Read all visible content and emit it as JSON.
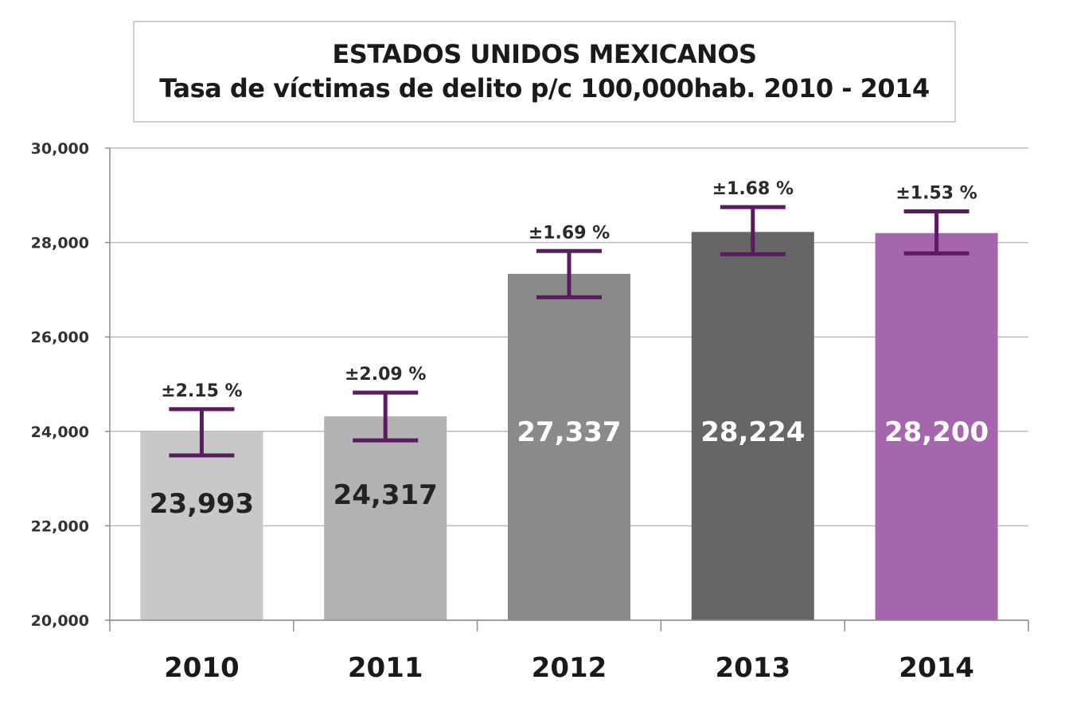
{
  "chart_data": {
    "type": "bar",
    "title": "ESTADOS UNIDOS MEXICANOS",
    "subtitle": "Tasa de víctimas de delito p/c 100,000hab. 2010 - 2014",
    "categories": [
      "2010",
      "2011",
      "2012",
      "2013",
      "2014"
    ],
    "values": [
      23993,
      24317,
      27337,
      28224,
      28200
    ],
    "value_labels": [
      "23,993",
      "24,317",
      "27,337",
      "28,224",
      "28,200"
    ],
    "error_labels": [
      "±2.15 %",
      "±2.09 %",
      "±1.69 %",
      "±1.68 %",
      "±1.53 %"
    ],
    "error_low": [
      23490,
      23810,
      26840,
      27750,
      27770
    ],
    "error_high": [
      24470,
      24820,
      27820,
      28750,
      28660
    ],
    "y_tick_labels": [
      "20,000",
      "22,000",
      "24,000",
      "26,000",
      "28,000",
      "30,000"
    ],
    "y_ticks": [
      20000,
      22000,
      24000,
      26000,
      28000,
      30000
    ],
    "ylim": [
      20000,
      30000
    ],
    "grid": true,
    "bar_colors": [
      "#c8c8c8",
      "#b2b2b2",
      "#8a8a8a",
      "#666666",
      "#a566ae"
    ],
    "value_label_colors": [
      "#222222",
      "#222222",
      "#ffffff",
      "#ffffff",
      "#ffffff"
    ],
    "error_bar_color": "#5c1a63",
    "xlabel": "",
    "ylabel": ""
  }
}
